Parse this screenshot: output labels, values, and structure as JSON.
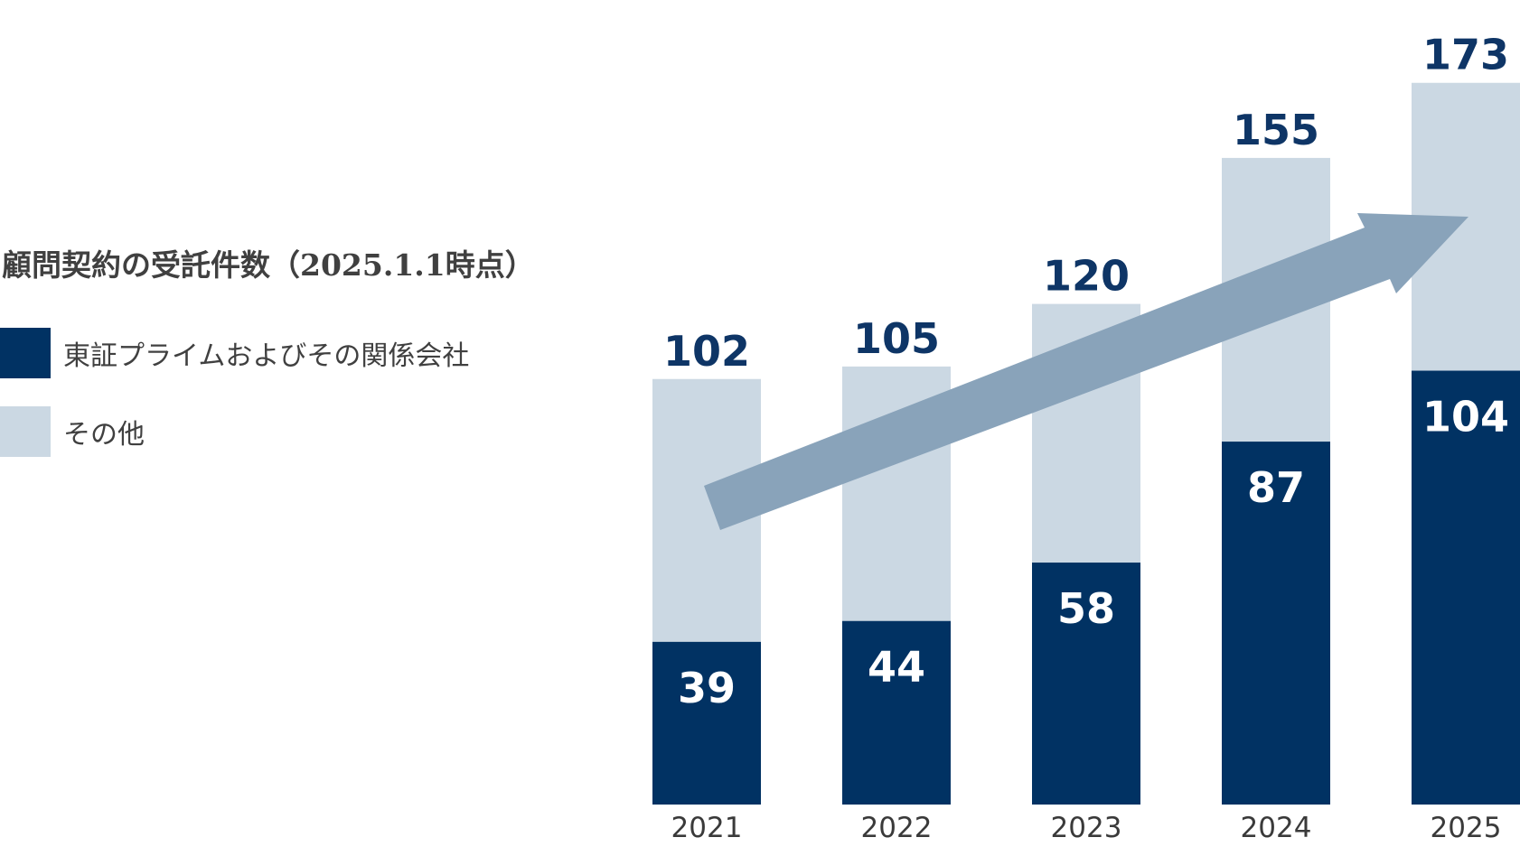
{
  "chart_data": {
    "type": "bar",
    "stacked": true,
    "title": "顧問契約の受託件数（2025.1.1時点）",
    "categories": [
      "2021",
      "2022",
      "2023",
      "2024",
      "2025"
    ],
    "totals": [
      "102",
      "105",
      "120",
      "155",
      "173"
    ],
    "series": [
      {
        "name": "東証プライムおよびその関係会社",
        "color": "#013263",
        "values": [
          39,
          44,
          58,
          87,
          104
        ]
      },
      {
        "name": "その他",
        "color": "#cbd8e3",
        "values": [
          63,
          61,
          62,
          68,
          69
        ]
      }
    ],
    "ylim": [
      0,
      180
    ],
    "grid": false,
    "legend": "left",
    "colors": {
      "total_label": "#0e3566",
      "inner_label": "#ffffff",
      "year_label": "#3a3a3a",
      "trend_arrow": "#89a3ba"
    },
    "annotations": [
      {
        "type": "trend-arrow",
        "direction": "up-right"
      }
    ]
  }
}
